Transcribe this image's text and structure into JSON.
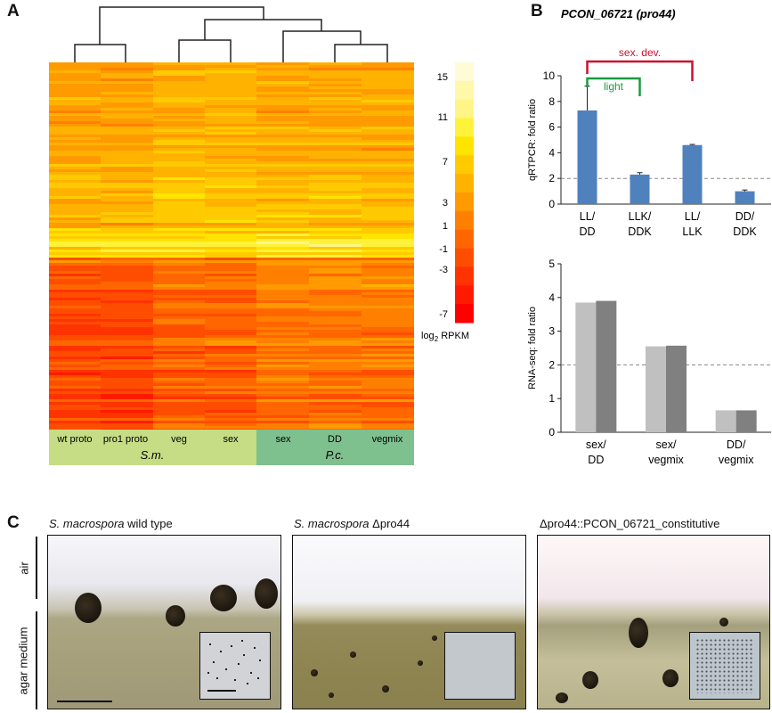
{
  "panel_letters": {
    "a": "A",
    "b": "B",
    "c": "C"
  },
  "colors": {
    "heat_scale": [
      "#fffbd6",
      "#fff8a8",
      "#fff586",
      "#fff23a",
      "#ffe400",
      "#ffcb00",
      "#ffb300",
      "#ff9a00",
      "#ff8000",
      "#ff6600",
      "#ff4d00",
      "#ff3300",
      "#ff1a00",
      "#ff0000"
    ],
    "bar_blue": "#4f81bd",
    "rna_light": "#c0c0c0",
    "rna_dark": "#808080",
    "sm_band": "#c6dc85",
    "pc_band": "#7fc08f",
    "sex_dev_bracket": "#c8102e",
    "light_bracket": "#1a9a41"
  },
  "heatmap": {
    "colorbar_ticks": [
      "15",
      "11",
      "7",
      "3",
      "1",
      "-1",
      "-3",
      "-7"
    ],
    "colorbar_unit_main": "log",
    "colorbar_unit_sub": "2",
    "colorbar_unit_rest": " RPKM",
    "columns": [
      "wt proto",
      "pro1 proto",
      "veg",
      "sex",
      "sex",
      "DD",
      "vegmix"
    ],
    "group_sm": "S.m.",
    "group_pc": "P.c."
  },
  "panel_b_title": {
    "gene": "PCON_06721",
    "alias": "(pro44)"
  },
  "chart_data": [
    {
      "type": "bar",
      "ylabel": "qRTPCR: fold ratio",
      "categories": [
        "LL/ DD",
        "LLK/ DDK",
        "LL/ LLK",
        "DD/ DDK"
      ],
      "category_lines": [
        [
          "LL/",
          "DD"
        ],
        [
          "LLK/",
          "DDK"
        ],
        [
          "LL/",
          "LLK"
        ],
        [
          "DD/",
          "DDK"
        ]
      ],
      "values": [
        7.3,
        2.3,
        4.6,
        1.0
      ],
      "error": [
        1.9,
        0.15,
        0.05,
        0.1
      ],
      "ylim": [
        0,
        10
      ],
      "yticks": [
        "0",
        "2",
        "4",
        "6",
        "8",
        "10"
      ],
      "reference_line": 2,
      "annotations": [
        {
          "text": "sex. dev.",
          "from": "LL/ DD",
          "to": "LL/ LLK"
        },
        {
          "text": "light",
          "from": "LL/ DD",
          "to": "LLK/ DDK"
        }
      ]
    },
    {
      "type": "bar",
      "ylabel": "RNA-seq: fold ratio",
      "categories": [
        "sex/ DD",
        "sex/ vegmix",
        "DD/ vegmix"
      ],
      "category_lines": [
        [
          "sex/",
          "DD"
        ],
        [
          "sex/",
          "vegmix"
        ],
        [
          "DD/",
          "vegmix"
        ]
      ],
      "series": [
        {
          "values": [
            3.85,
            2.55,
            0.65
          ]
        },
        {
          "values": [
            3.9,
            2.57,
            0.65
          ]
        }
      ],
      "ylim": [
        0,
        5
      ],
      "yticks": [
        "0",
        "1",
        "2",
        "3",
        "4",
        "5"
      ],
      "reference_line": 2
    }
  ],
  "panel_c": {
    "captions": [
      {
        "italic": "S. macrospora",
        "rest": " wild type"
      },
      {
        "italic": "S. macrospora",
        "rest": " Δpro44"
      },
      {
        "italic": "",
        "rest": "Δpro44::PCON_06721_constitutive"
      }
    ],
    "side_labels": {
      "air": "air",
      "agar": "agar medium"
    }
  }
}
